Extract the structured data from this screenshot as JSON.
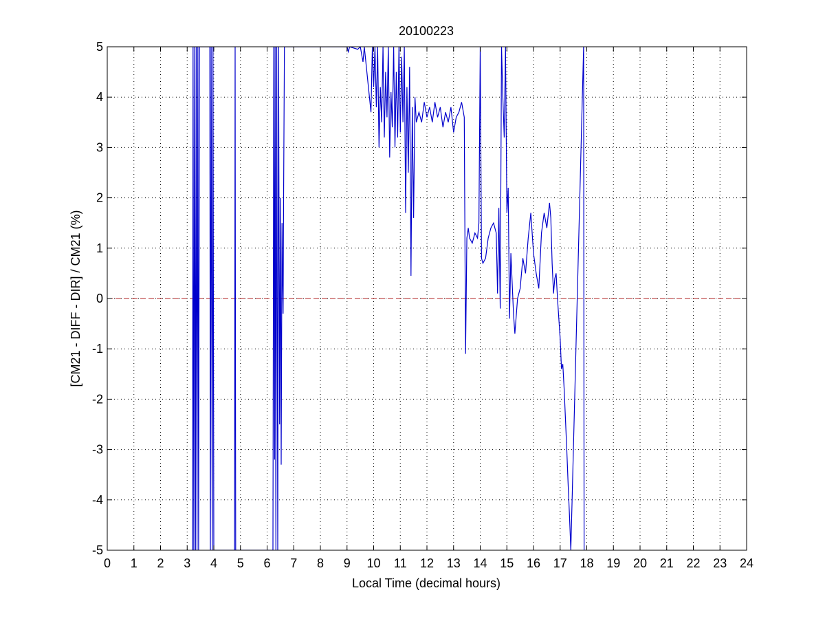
{
  "colors": {
    "background": "#ffffff",
    "axes": "#000000",
    "grid": "#000000",
    "series_line": "#0000cc",
    "reference_line": "#b22222"
  },
  "chart_data": {
    "type": "line",
    "title": "20100223",
    "xlabel": "Local Time (decimal hours)",
    "ylabel": "[CM21 - DIFF - DIR] / CM21 (%)",
    "xlim": [
      0,
      24
    ],
    "ylim": [
      -5,
      5
    ],
    "xticks": [
      0,
      1,
      2,
      3,
      4,
      5,
      6,
      7,
      8,
      9,
      10,
      11,
      12,
      13,
      14,
      15,
      16,
      17,
      18,
      19,
      20,
      21,
      22,
      23,
      24
    ],
    "yticks": [
      -5,
      -4,
      -3,
      -2,
      -1,
      0,
      1,
      2,
      3,
      4,
      5
    ],
    "grid": true,
    "grid_style": "dotted",
    "reference_line": {
      "y": 0,
      "style": "dashed"
    },
    "series": [
      {
        "values_xy": [
          [
            3.2,
            -5
          ],
          [
            3.22,
            5
          ],
          [
            3.25,
            -5
          ],
          [
            3.28,
            5
          ],
          [
            3.31,
            -5
          ],
          [
            3.34,
            5
          ],
          [
            3.37,
            -5
          ],
          [
            3.4,
            5
          ],
          [
            3.43,
            -5
          ],
          [
            3.46,
            5
          ],
          [
            3.85,
            5
          ],
          [
            3.87,
            -5
          ],
          [
            3.9,
            5
          ],
          [
            3.94,
            -5
          ],
          [
            3.97,
            5
          ],
          [
            4.0,
            -5
          ],
          [
            4.78,
            -5
          ],
          [
            4.8,
            5
          ],
          [
            4.82,
            -5
          ],
          [
            6.22,
            -5
          ],
          [
            6.25,
            5
          ],
          [
            6.28,
            -3.2
          ],
          [
            6.3,
            5
          ],
          [
            6.33,
            -5
          ],
          [
            6.36,
            5
          ],
          [
            6.4,
            -5
          ],
          [
            6.43,
            5
          ],
          [
            6.47,
            -2.5
          ],
          [
            6.5,
            2
          ],
          [
            6.53,
            -3.3
          ],
          [
            6.56,
            1.5
          ],
          [
            6.58,
            0.4
          ],
          [
            6.6,
            -0.3
          ],
          [
            6.62,
            2
          ],
          [
            6.65,
            5
          ],
          [
            9.0,
            5
          ],
          [
            9.05,
            4.9
          ],
          [
            9.1,
            5
          ],
          [
            9.4,
            4.95
          ],
          [
            9.5,
            5
          ],
          [
            9.6,
            4.7
          ],
          [
            9.65,
            5
          ],
          [
            9.9,
            3.7
          ],
          [
            9.95,
            5
          ],
          [
            10.0,
            4.2
          ],
          [
            10.05,
            5
          ],
          [
            10.1,
            3.8
          ],
          [
            10.15,
            5
          ],
          [
            10.2,
            3.0
          ],
          [
            10.25,
            4.2
          ],
          [
            10.3,
            3.5
          ],
          [
            10.35,
            5
          ],
          [
            10.4,
            3.2
          ],
          [
            10.45,
            4.5
          ],
          [
            10.5,
            3.6
          ],
          [
            10.55,
            5
          ],
          [
            10.6,
            2.8
          ],
          [
            10.65,
            4.1
          ],
          [
            10.7,
            3.4
          ],
          [
            10.75,
            5
          ],
          [
            10.8,
            3.0
          ],
          [
            10.85,
            4.5
          ],
          [
            10.9,
            3.2
          ],
          [
            10.95,
            5
          ],
          [
            11.0,
            3.3
          ],
          [
            11.05,
            4.8
          ],
          [
            11.1,
            3.5
          ],
          [
            11.15,
            5
          ],
          [
            11.2,
            1.7
          ],
          [
            11.25,
            4.2
          ],
          [
            11.3,
            2.5
          ],
          [
            11.35,
            4.6
          ],
          [
            11.4,
            0.45
          ],
          [
            11.45,
            3.8
          ],
          [
            11.5,
            1.6
          ],
          [
            11.55,
            4.0
          ],
          [
            11.6,
            3.5
          ],
          [
            11.7,
            3.7
          ],
          [
            11.8,
            3.5
          ],
          [
            11.9,
            3.9
          ],
          [
            12.0,
            3.6
          ],
          [
            12.1,
            3.8
          ],
          [
            12.2,
            3.5
          ],
          [
            12.3,
            3.9
          ],
          [
            12.4,
            3.6
          ],
          [
            12.5,
            3.8
          ],
          [
            12.6,
            3.4
          ],
          [
            12.7,
            3.7
          ],
          [
            12.8,
            3.5
          ],
          [
            12.9,
            3.8
          ],
          [
            13.0,
            3.3
          ],
          [
            13.1,
            3.6
          ],
          [
            13.2,
            3.7
          ],
          [
            13.3,
            3.9
          ],
          [
            13.4,
            3.6
          ],
          [
            13.45,
            -1.1
          ],
          [
            13.5,
            1.2
          ],
          [
            13.55,
            1.4
          ],
          [
            13.6,
            1.2
          ],
          [
            13.7,
            1.1
          ],
          [
            13.8,
            1.3
          ],
          [
            13.9,
            1.2
          ],
          [
            13.95,
            1.5
          ],
          [
            14.0,
            5
          ],
          [
            14.05,
            0.8
          ],
          [
            14.1,
            0.7
          ],
          [
            14.2,
            0.8
          ],
          [
            14.3,
            1.2
          ],
          [
            14.4,
            1.4
          ],
          [
            14.5,
            1.5
          ],
          [
            14.6,
            1.3
          ],
          [
            14.65,
            0.1
          ],
          [
            14.7,
            1.8
          ],
          [
            14.75,
            -0.2
          ],
          [
            14.8,
            5
          ],
          [
            14.85,
            4.0
          ],
          [
            14.9,
            3.2
          ],
          [
            14.95,
            5
          ],
          [
            15.0,
            1.7
          ],
          [
            15.05,
            2.2
          ],
          [
            15.1,
            -0.4
          ],
          [
            15.15,
            0.9
          ],
          [
            15.2,
            0.3
          ],
          [
            15.25,
            -0.3
          ],
          [
            15.3,
            -0.7
          ],
          [
            15.4,
            0.0
          ],
          [
            15.5,
            0.2
          ],
          [
            15.6,
            0.8
          ],
          [
            15.7,
            0.5
          ],
          [
            15.8,
            1.2
          ],
          [
            15.9,
            1.7
          ],
          [
            16.0,
            0.9
          ],
          [
            16.1,
            0.5
          ],
          [
            16.2,
            0.2
          ],
          [
            16.3,
            1.3
          ],
          [
            16.4,
            1.7
          ],
          [
            16.5,
            1.4
          ],
          [
            16.6,
            1.9
          ],
          [
            16.65,
            1.6
          ],
          [
            16.7,
            0.7
          ],
          [
            16.75,
            0.1
          ],
          [
            16.8,
            0.4
          ],
          [
            16.85,
            0.5
          ],
          [
            16.9,
            0.0
          ],
          [
            17.0,
            -0.8
          ],
          [
            17.05,
            -1.4
          ],
          [
            17.1,
            -1.3
          ],
          [
            17.15,
            -1.8
          ],
          [
            17.2,
            -2.4
          ],
          [
            17.25,
            -3.0
          ],
          [
            17.3,
            -3.7
          ],
          [
            17.35,
            -4.3
          ],
          [
            17.4,
            -5
          ],
          [
            17.88,
            5
          ],
          [
            17.9,
            -5
          ]
        ]
      }
    ]
  }
}
